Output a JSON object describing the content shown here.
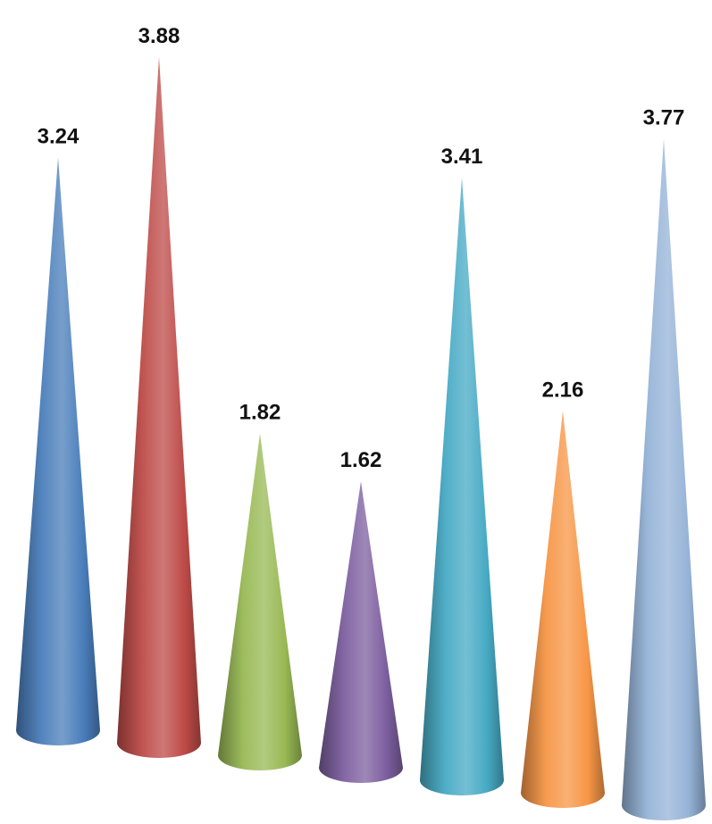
{
  "chart_data": {
    "type": "bar",
    "shape": "cone",
    "categories": [
      "",
      "",
      "",
      "",
      "",
      "",
      ""
    ],
    "values": [
      3.24,
      3.88,
      1.82,
      1.62,
      3.41,
      2.16,
      3.77
    ],
    "labels": [
      "3.24",
      "3.88",
      "1.82",
      "1.62",
      "3.41",
      "2.16",
      "3.77"
    ],
    "colors": [
      "#4a7ebb",
      "#be4b48",
      "#98b954",
      "#7d5fa0",
      "#46aac4",
      "#f79646",
      "#95b3d7"
    ],
    "title": "",
    "xlabel": "",
    "ylabel": "",
    "ylim": [
      0,
      4.5
    ],
    "grid": false,
    "legend": "none"
  }
}
